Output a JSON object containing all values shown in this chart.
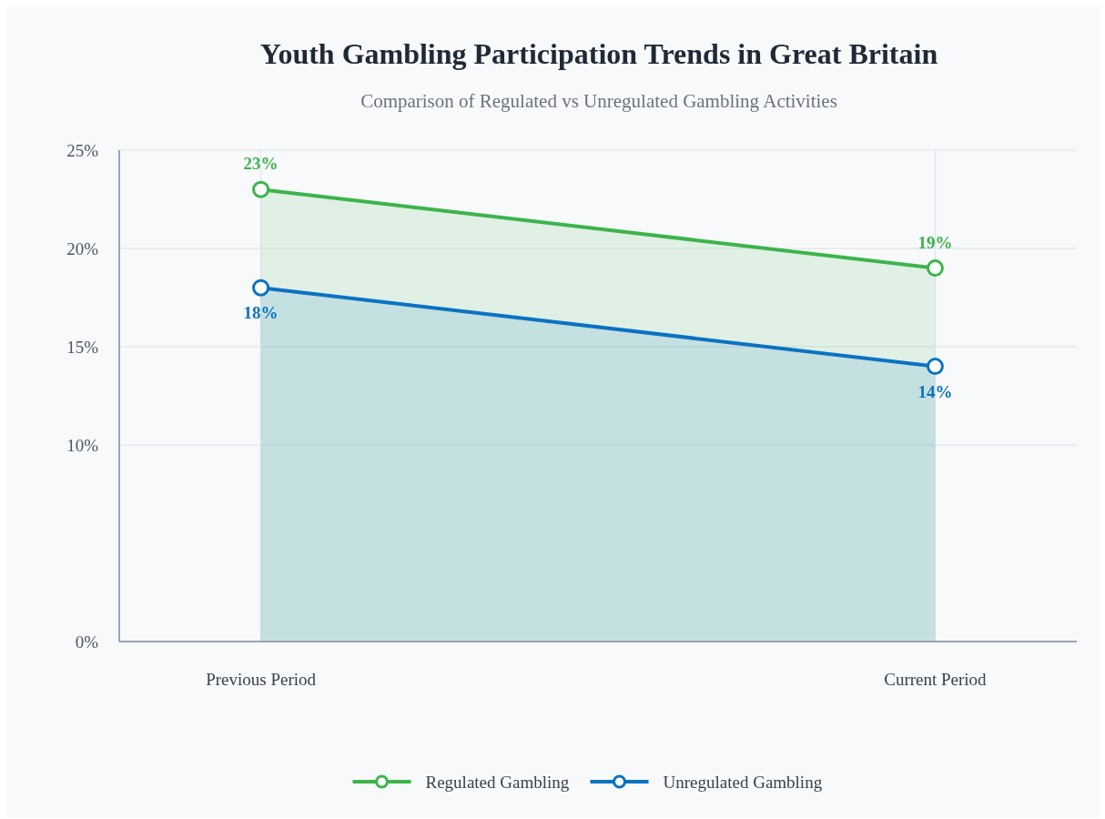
{
  "chart_data": {
    "type": "area",
    "title": "Youth Gambling Participation Trends in Great Britain",
    "subtitle": "Comparison of Regulated vs Unregulated Gambling Activities",
    "categories": [
      "Previous Period",
      "Current Period"
    ],
    "series": [
      {
        "name": "Regulated Gambling",
        "color": "#3cb44b",
        "values": [
          23,
          19
        ],
        "value_labels": [
          "23%",
          "19%"
        ]
      },
      {
        "name": "Unregulated Gambling",
        "color": "#0a72c2",
        "values": [
          18,
          14
        ],
        "value_labels": [
          "18%",
          "14%"
        ]
      }
    ],
    "ylim": [
      0,
      25
    ],
    "yticks": [
      {
        "value": 0,
        "label": "0%"
      },
      {
        "value": 10,
        "label": "10%"
      },
      {
        "value": 15,
        "label": "15%"
      },
      {
        "value": 20,
        "label": "20%"
      },
      {
        "value": 25,
        "label": "25%"
      }
    ],
    "grid": true,
    "legend": "bottom",
    "marker": "circle",
    "line_style": "solid"
  }
}
